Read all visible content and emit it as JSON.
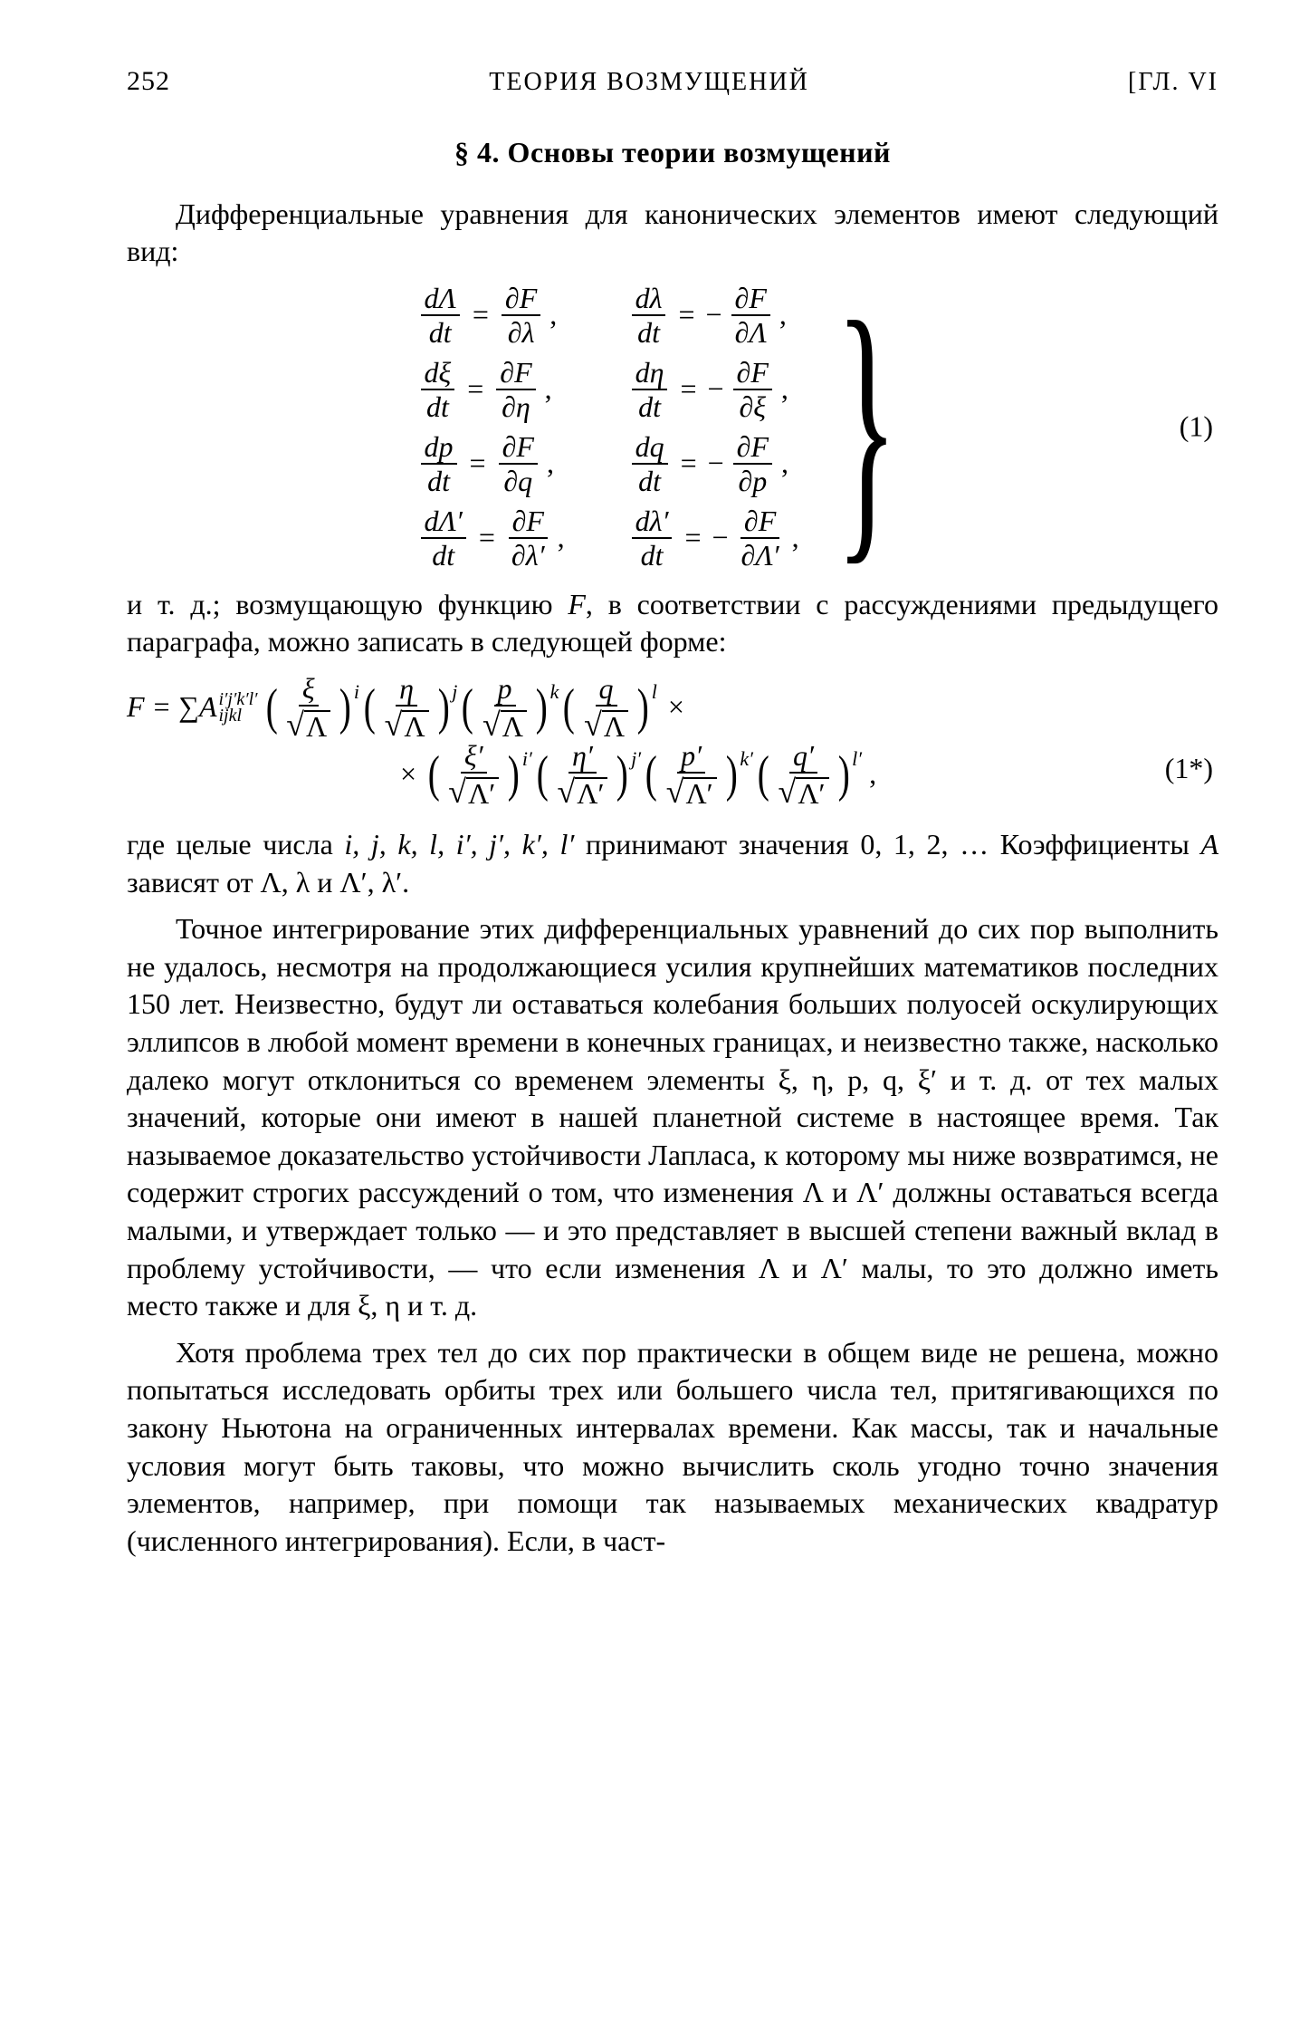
{
  "header": {
    "page_number": "252",
    "running_title": "ТЕОРИЯ ВОЗМУЩЕНИЙ",
    "chapter_marker": "[ГЛ. VI"
  },
  "section_title": "§ 4. Основы теории возмущений",
  "para_intro": "Дифференциальные уравнения для канонических элементов имеют следующий вид:",
  "eq1": {
    "rows": [
      {
        "ln": "Λ",
        "ld": "t",
        "rn": "F",
        "rd": "λ",
        "l2n": "λ",
        "l2d": "t",
        "r2n": "F",
        "r2d": "Λ"
      },
      {
        "ln": "ξ",
        "ld": "t",
        "rn": "F",
        "rd": "η",
        "l2n": "η",
        "l2d": "t",
        "r2n": "F",
        "r2d": "ξ"
      },
      {
        "ln": "p",
        "ld": "t",
        "rn": "F",
        "rd": "q",
        "l2n": "q",
        "l2d": "t",
        "r2n": "F",
        "r2d": "p"
      },
      {
        "ln": "Λ′",
        "ld": "t",
        "rn": "F",
        "rd": "λ′",
        "l2n": "λ′",
        "l2d": "t",
        "r2n": "F",
        "r2d": "Λ′"
      }
    ],
    "number": "(1)"
  },
  "para_after_eq1_a": "и т. д.; возмущающую функцию ",
  "para_after_eq1_F": "F",
  "para_after_eq1_b": ", в соответствии с рассуждениями предыдущего параграфа, можно записать в следующей форме:",
  "eqstar": {
    "lead": "F = ∑ ",
    "coef": "A",
    "coef_sup": "i′j′k′l′",
    "coef_sub": "ijkl",
    "terms1": [
      {
        "num": "ξ",
        "rad": "Λ",
        "pow": "i"
      },
      {
        "num": "η",
        "rad": "Λ",
        "pow": "j"
      },
      {
        "num": "p",
        "rad": "Λ",
        "pow": "k"
      },
      {
        "num": "q",
        "rad": "Λ",
        "pow": "l"
      }
    ],
    "terms2": [
      {
        "num": "ξ′",
        "rad": "Λ′",
        "pow": "i′"
      },
      {
        "num": "η′",
        "rad": "Λ′",
        "pow": "j′"
      },
      {
        "num": "p′",
        "rad": "Λ′",
        "pow": "k′"
      },
      {
        "num": "q′",
        "rad": "Λ′",
        "pow": "l′"
      }
    ],
    "number": "(1*)"
  },
  "para3_a": "где целые числа ",
  "para3_syms": "i, j, k, l, i′, j′, k′, l′",
  "para3_b": " принимают значения 0, 1, 2, … Коэффициенты ",
  "para3_A": "A",
  "para3_c": " зависят от Λ, λ и Λ′, λ′.",
  "para4": "Точное интегрирование этих дифференциальных уравнений до сих пор выполнить не удалось, несмотря на продолжающиеся усилия крупнейших математиков последних 150 лет. Неизвестно, будут ли оставаться колебания больших полуосей оскулирующих эллипсов в любой момент времени в конечных границах, и неизвестно также, насколько далеко могут отклониться со временем элементы ξ, η, p, q, ξ′ и т. д. от тех малых значений, которые они имеют в нашей планетной системе в настоящее время. Так называемое доказательство устойчивости Лапласа, к которому мы ниже возвратимся, не содержит строгих рассуждений о том, что изменения Λ и Λ′ должны оставаться всегда малыми, и утверждает только — и это представляет в высшей степени важный вклад в проблему устойчивости, — что если изменения Λ и Λ′ малы, то это должно иметь место также и для ξ, η и т. д.",
  "para5": "Хотя проблема трех тел до сих пор практически в общем виде не решена, можно попытаться исследовать орбиты трех или большего числа тел, притягивающихся по закону Ньютона на ограниченных интервалах времени. Как массы, так и начальные условия могут быть таковы, что можно вычислить сколь угодно точно значения элементов, например, при помощи так называемых механических квадратур (численного интегрирования). Если, в част-"
}
